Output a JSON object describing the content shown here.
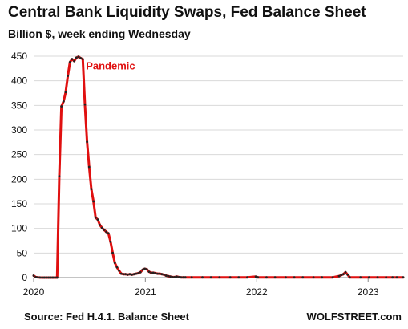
{
  "colors": {
    "line": "#e01010",
    "markers": "#222222",
    "grid": "#d9d9d9",
    "axis": "#888888",
    "annotation": "#e01010"
  },
  "footer": {
    "source": "Source: Fed H.4.1. Balance Sheet",
    "brand": "WOLFSTREET.com"
  },
  "chart_data": {
    "type": "line",
    "title": "Central Bank Liquidity Swaps, Fed Balance Sheet",
    "subtitle": "Billion $, week ending Wednesday",
    "xlabel": "",
    "ylabel": "",
    "ylim": [
      0,
      450
    ],
    "y_ticks": [
      0,
      50,
      100,
      150,
      200,
      250,
      300,
      350,
      400,
      450
    ],
    "xlim": [
      "2020-01-01",
      "2023-04-26"
    ],
    "x_ticks": [
      {
        "label": "2020",
        "date": "2020-01-01"
      },
      {
        "label": "2021",
        "date": "2021-01-01"
      },
      {
        "label": "2022",
        "date": "2022-01-01"
      },
      {
        "label": "2023",
        "date": "2023-01-01"
      }
    ],
    "grid": "horizontal",
    "legend": "none",
    "annotations": [
      {
        "text": "Pandemic",
        "date": "2020-06-15",
        "value": 430
      }
    ],
    "series": [
      {
        "points": [
          [
            "2020-01-01",
            4
          ],
          [
            "2020-01-08",
            1
          ],
          [
            "2020-01-15",
            0.5
          ],
          [
            "2020-01-22",
            0.2
          ],
          [
            "2020-01-29",
            0.1
          ],
          [
            "2020-02-05",
            0.1
          ],
          [
            "2020-02-12",
            0.1
          ],
          [
            "2020-02-19",
            0.1
          ],
          [
            "2020-02-26",
            0.1
          ],
          [
            "2020-03-04",
            0.1
          ],
          [
            "2020-03-11",
            0.1
          ],
          [
            "2020-03-18",
            0.1
          ],
          [
            "2020-03-25",
            206
          ],
          [
            "2020-04-01",
            348
          ],
          [
            "2020-04-08",
            358
          ],
          [
            "2020-04-15",
            377
          ],
          [
            "2020-04-22",
            410
          ],
          [
            "2020-04-29",
            438
          ],
          [
            "2020-05-06",
            444
          ],
          [
            "2020-05-13",
            440
          ],
          [
            "2020-05-20",
            447
          ],
          [
            "2020-05-27",
            449
          ],
          [
            "2020-06-03",
            446
          ],
          [
            "2020-06-10",
            444
          ],
          [
            "2020-06-17",
            352
          ],
          [
            "2020-06-24",
            276
          ],
          [
            "2020-07-01",
            225
          ],
          [
            "2020-07-08",
            180
          ],
          [
            "2020-07-15",
            155
          ],
          [
            "2020-07-22",
            122
          ],
          [
            "2020-07-29",
            118
          ],
          [
            "2020-08-05",
            107
          ],
          [
            "2020-08-12",
            101
          ],
          [
            "2020-08-19",
            97
          ],
          [
            "2020-08-26",
            93
          ],
          [
            "2020-09-02",
            90
          ],
          [
            "2020-09-09",
            73
          ],
          [
            "2020-09-16",
            50
          ],
          [
            "2020-09-23",
            30
          ],
          [
            "2020-09-30",
            21
          ],
          [
            "2020-10-07",
            14
          ],
          [
            "2020-10-14",
            8
          ],
          [
            "2020-10-21",
            7
          ],
          [
            "2020-10-28",
            7
          ],
          [
            "2020-11-04",
            6
          ],
          [
            "2020-11-11",
            7
          ],
          [
            "2020-11-18",
            6
          ],
          [
            "2020-11-25",
            7
          ],
          [
            "2020-12-02",
            8
          ],
          [
            "2020-12-09",
            9
          ],
          [
            "2020-12-16",
            11
          ],
          [
            "2020-12-23",
            16
          ],
          [
            "2020-12-30",
            18
          ],
          [
            "2021-01-06",
            17
          ],
          [
            "2021-01-13",
            12
          ],
          [
            "2021-01-20",
            10
          ],
          [
            "2021-01-27",
            10
          ],
          [
            "2021-02-03",
            9
          ],
          [
            "2021-02-10",
            8
          ],
          [
            "2021-02-17",
            8
          ],
          [
            "2021-02-24",
            7
          ],
          [
            "2021-03-03",
            6
          ],
          [
            "2021-03-10",
            4
          ],
          [
            "2021-03-17",
            3
          ],
          [
            "2021-03-24",
            2
          ],
          [
            "2021-03-31",
            1
          ],
          [
            "2021-04-07",
            1
          ],
          [
            "2021-04-14",
            2
          ],
          [
            "2021-04-21",
            1
          ],
          [
            "2021-04-28",
            0.5
          ],
          [
            "2021-05-05",
            0.5
          ],
          [
            "2021-05-12",
            0.5
          ],
          [
            "2021-06-02",
            0.5
          ],
          [
            "2021-07-07",
            0.5
          ],
          [
            "2021-08-04",
            0.5
          ],
          [
            "2021-09-01",
            0.5
          ],
          [
            "2021-10-06",
            0.5
          ],
          [
            "2021-11-03",
            0.5
          ],
          [
            "2021-12-01",
            0.5
          ],
          [
            "2021-12-29",
            2
          ],
          [
            "2022-01-05",
            0.5
          ],
          [
            "2022-02-02",
            0.5
          ],
          [
            "2022-03-02",
            0.5
          ],
          [
            "2022-04-06",
            0.5
          ],
          [
            "2022-05-04",
            0.5
          ],
          [
            "2022-06-01",
            0.5
          ],
          [
            "2022-07-06",
            0.5
          ],
          [
            "2022-08-03",
            0.5
          ],
          [
            "2022-09-07",
            0.5
          ],
          [
            "2022-09-28",
            3
          ],
          [
            "2022-10-05",
            5
          ],
          [
            "2022-10-12",
            7
          ],
          [
            "2022-10-19",
            11
          ],
          [
            "2022-10-26",
            6
          ],
          [
            "2022-11-02",
            0.5
          ],
          [
            "2022-12-07",
            0.5
          ],
          [
            "2023-01-04",
            0.5
          ],
          [
            "2023-02-01",
            0.5
          ],
          [
            "2023-03-01",
            0.5
          ],
          [
            "2023-03-22",
            0.5
          ],
          [
            "2023-04-05",
            0.5
          ],
          [
            "2023-04-26",
            0.5
          ]
        ]
      }
    ]
  }
}
